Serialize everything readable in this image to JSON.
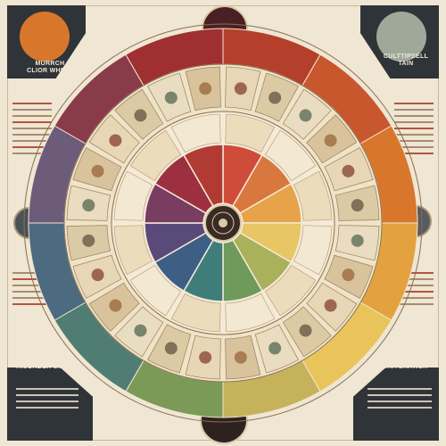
{
  "labels": {
    "top_left_title": "MURRCH\nCLIOR WHELL",
    "top_right_title": "CULTTIPSELL\nTAIN",
    "bottom_left_title": "HISORDER SMBLE",
    "bottom_right_title": "MICRITCRATICH"
  },
  "colors": {
    "background": "#efe6d3",
    "corner_dark": "#2f3438",
    "accent_orange": "#d8772c",
    "accent_maroon": "#4a2024"
  },
  "icons": {
    "center": "mandala-rosette-icon"
  },
  "wheel": {
    "outer_band_colors": [
      "#b4402c",
      "#c8572e",
      "#d8772c",
      "#e3a23f",
      "#e8c45a",
      "#c6b25a",
      "#7c9a57",
      "#4f7d73",
      "#4c6a80",
      "#6d5b7a",
      "#8a3b4a",
      "#9f2f30"
    ],
    "inner_wedge_colors": [
      "#cf4c3a",
      "#d9783e",
      "#e6a34a",
      "#e8c565",
      "#a9b15b",
      "#6e9a5b",
      "#3f7d7b",
      "#3d5f86",
      "#5a4a7a",
      "#7a3d62",
      "#9c3040",
      "#b23a34"
    ]
  }
}
